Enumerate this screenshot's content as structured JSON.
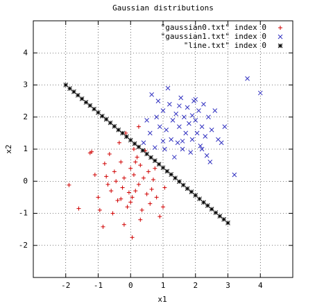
{
  "chart_data": {
    "type": "scatter",
    "title": "Gaussian distributions",
    "x_label": "x1",
    "y_label": "x2",
    "xlim": [
      -3,
      5
    ],
    "ylim": [
      -3,
      5
    ],
    "xticks": [
      -2,
      -1,
      0,
      1,
      2,
      3,
      4
    ],
    "yticks": [
      -2,
      -1,
      0,
      1,
      2,
      3,
      4
    ],
    "grid": true,
    "legend": "top-right",
    "series": [
      {
        "name": "\"gaussian0.txt\" index 0",
        "color": "#d00000",
        "marker": "plus",
        "x": [
          -1.9,
          -1.6,
          -1.25,
          -1.2,
          -0.85,
          0.05,
          -0.8,
          -0.75,
          -0.6,
          -0.5,
          -0.4,
          -0.3,
          -0.25,
          -0.2,
          -0.1,
          0,
          0.05,
          0.1,
          0.15,
          0.2,
          0.25,
          0.3,
          0.35,
          0.4,
          0.5,
          0.55,
          0.6,
          0.7,
          0.8,
          0.9,
          1,
          1.05,
          -1,
          -1.1,
          -0.95,
          -0.55,
          -0.35,
          -0.15,
          0.1,
          0.45,
          0.25,
          -0.7,
          -0.45,
          -0.05,
          0.3,
          0.65,
          -0.3,
          0.15,
          -0.2,
          0.75,
          -0.65,
          0
        ],
        "values": [
          -0.12,
          -0.85,
          0.88,
          0.92,
          -1.42,
          -1.75,
          0.55,
          0.15,
          -0.3,
          0.3,
          -0.6,
          0.6,
          -0.2,
          0.1,
          -0.8,
          0.4,
          -0.5,
          0.2,
          -0.3,
          0.75,
          -0.1,
          0.5,
          -0.9,
          0.1,
          -0.4,
          0.3,
          -0.7,
          0.05,
          -0.5,
          -1.1,
          -0.8,
          -0.2,
          -0.5,
          0.2,
          -0.9,
          -1,
          1.2,
          1.5,
          1,
          0.95,
          1.7,
          -0.1,
          0,
          -0.35,
          -1.2,
          -0.25,
          -0.55,
          0.6,
          -1.35,
          0.4,
          0.85,
          -0.65
        ]
      },
      {
        "name": "\"gaussian1.txt\" index 0",
        "color": "#3030c0",
        "marker": "cross",
        "x": [
          0.4,
          0.5,
          0.6,
          0.65,
          0.8,
          0.9,
          1,
          1.05,
          1.1,
          1.2,
          1.25,
          1.3,
          1.4,
          1.45,
          1.5,
          1.55,
          1.6,
          1.65,
          1.7,
          1.75,
          1.8,
          1.85,
          1.9,
          1.95,
          2,
          2.05,
          2.1,
          2.15,
          2.2,
          2.25,
          2.3,
          2.35,
          2.4,
          2.5,
          2.6,
          2.7,
          2.8,
          2.9,
          3.2,
          3.6,
          4,
          1.35,
          1.15,
          2,
          1,
          0.85,
          2.45,
          1.6,
          1.9,
          2.2,
          0.75,
          1.5
        ],
        "values": [
          1.2,
          1.9,
          1.5,
          2.7,
          2,
          1.7,
          2.2,
          1,
          1.6,
          2.4,
          1.3,
          1.9,
          2.1,
          1.2,
          1.7,
          2.6,
          1,
          2,
          1.5,
          2.3,
          1.8,
          0.9,
          1.3,
          2.5,
          1.9,
          1.5,
          2.2,
          1.1,
          1.7,
          2.4,
          1.4,
          0.8,
          2,
          1.6,
          2.2,
          1.3,
          1.2,
          1.7,
          0.2,
          3.2,
          2.75,
          0.75,
          2.9,
          2.55,
          1.25,
          2.5,
          0.6,
          1.25,
          2.05,
          1,
          1.05,
          2.35
        ]
      },
      {
        "name": "\"line.txt\" index 0",
        "color": "#000000",
        "marker": "star",
        "x": [
          -2,
          -1.875,
          -1.75,
          -1.625,
          -1.5,
          -1.375,
          -1.25,
          -1.125,
          -1,
          -0.875,
          -0.75,
          -0.625,
          -0.5,
          -0.375,
          -0.25,
          -0.125,
          0,
          0.125,
          0.25,
          0.375,
          0.5,
          0.625,
          0.75,
          0.875,
          1,
          1.125,
          1.25,
          1.375,
          1.5,
          1.625,
          1.75,
          1.875,
          2,
          2.125,
          2.25,
          2.375,
          2.5,
          2.625,
          2.75,
          2.875,
          3
        ],
        "values": [
          3,
          2.89,
          2.79,
          2.68,
          2.57,
          2.46,
          2.36,
          2.25,
          2.14,
          2.03,
          1.93,
          1.82,
          1.71,
          1.6,
          1.5,
          1.39,
          1.28,
          1.17,
          1.07,
          0.96,
          0.85,
          0.74,
          0.64,
          0.53,
          0.42,
          0.31,
          0.21,
          0.1,
          -0.01,
          -0.12,
          -0.23,
          -0.33,
          -0.44,
          -0.55,
          -0.66,
          -0.76,
          -0.87,
          -0.98,
          -1.09,
          -1.19,
          -1.3
        ]
      }
    ]
  }
}
